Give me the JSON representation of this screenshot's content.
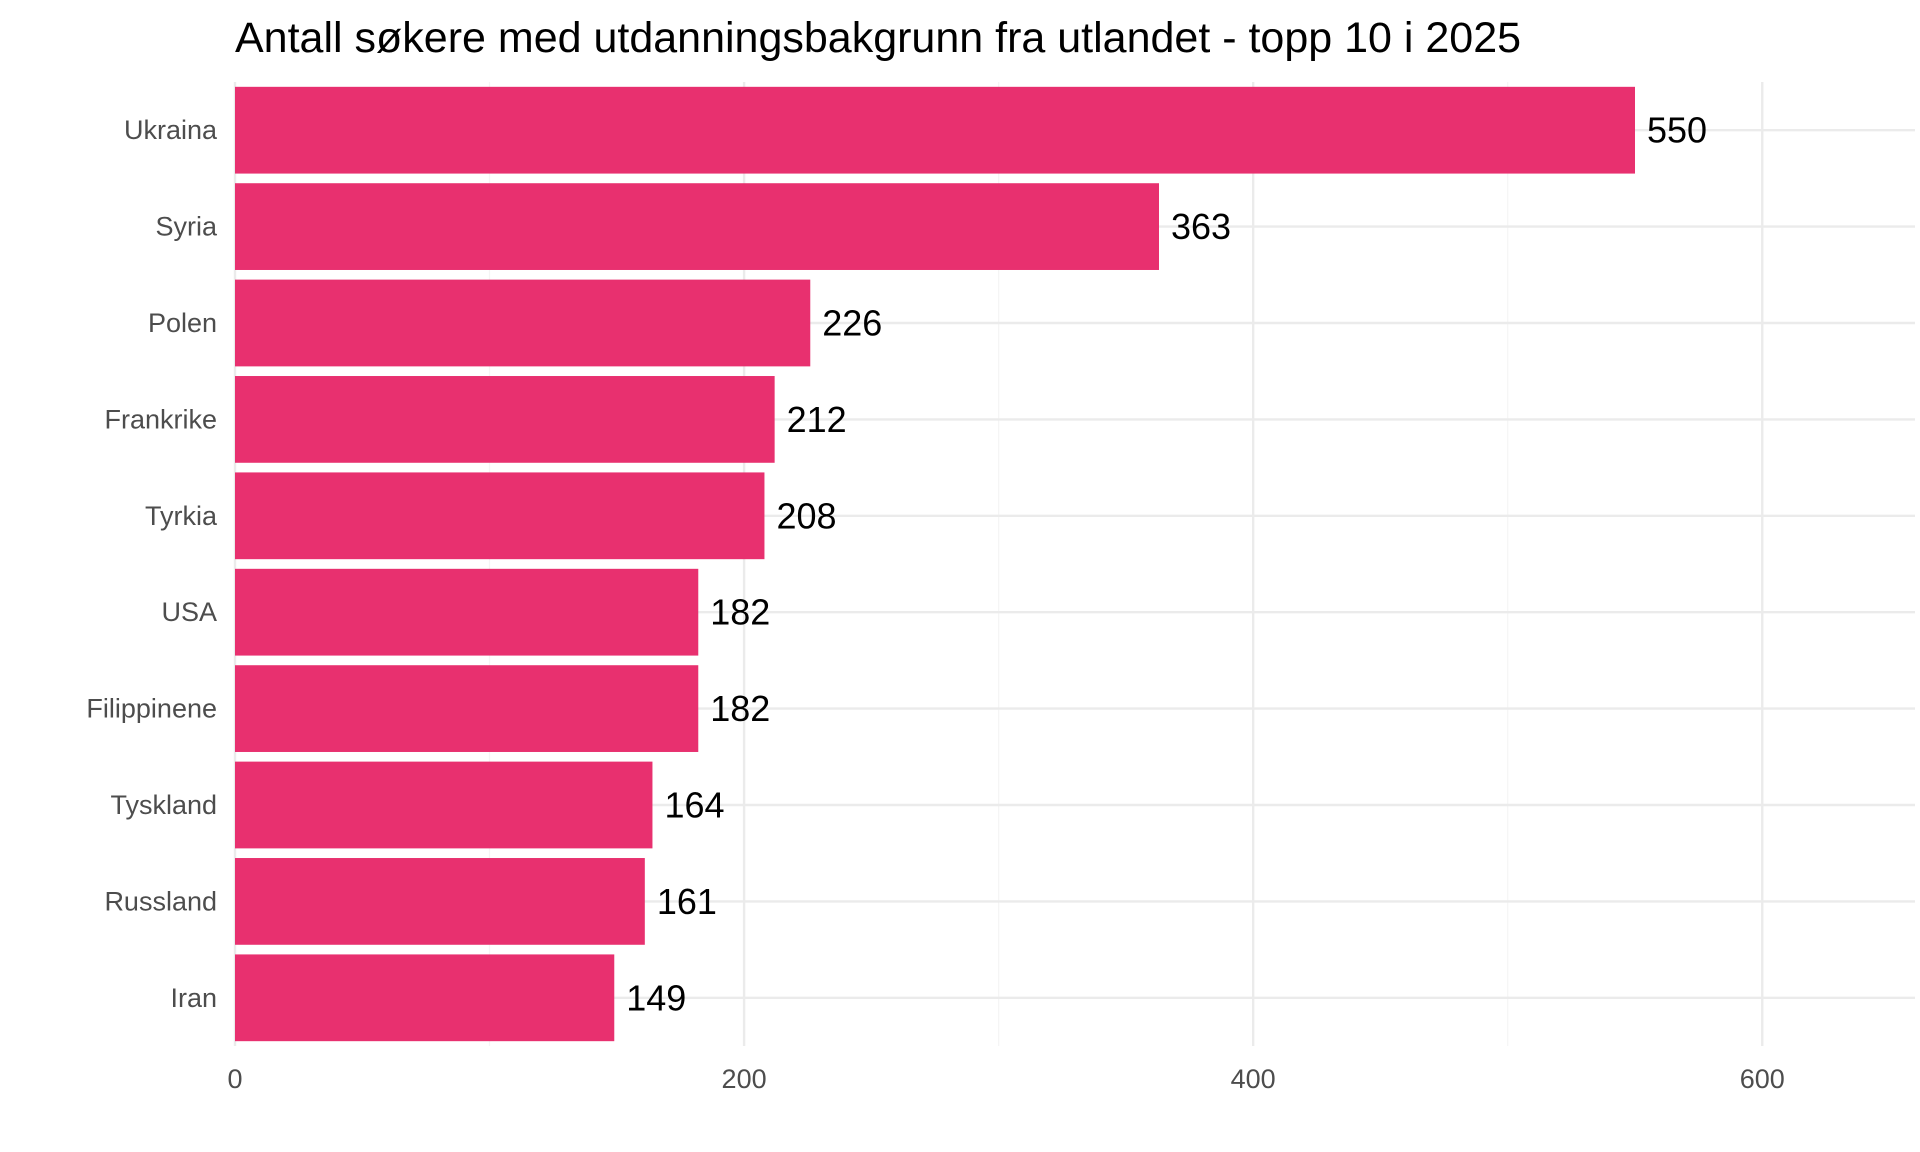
{
  "chart_data": {
    "type": "bar",
    "orientation": "horizontal",
    "title": "Antall søkere med utdanningsbakgrunn fra utlandet - topp 10 i 2025",
    "xlabel": "",
    "ylabel": "",
    "categories": [
      "Ukraina",
      "Syria",
      "Polen",
      "Frankrike",
      "Tyrkia",
      "USA",
      "Filippinene",
      "Tyskland",
      "Russland",
      "Iran"
    ],
    "values": [
      550,
      363,
      226,
      212,
      208,
      182,
      182,
      164,
      161,
      149
    ],
    "value_labels": [
      "550",
      "363",
      "226",
      "212",
      "208",
      "182",
      "182",
      "164",
      "161",
      "149"
    ],
    "xlim": [
      0,
      660
    ],
    "x_ticks": [
      0,
      200,
      400,
      600
    ],
    "x_tick_labels": [
      "0",
      "200",
      "400",
      "600"
    ],
    "x_minor_ticks": [
      100,
      300,
      500
    ],
    "grid": true,
    "legend": "none",
    "bar_color": "#e8306f"
  }
}
